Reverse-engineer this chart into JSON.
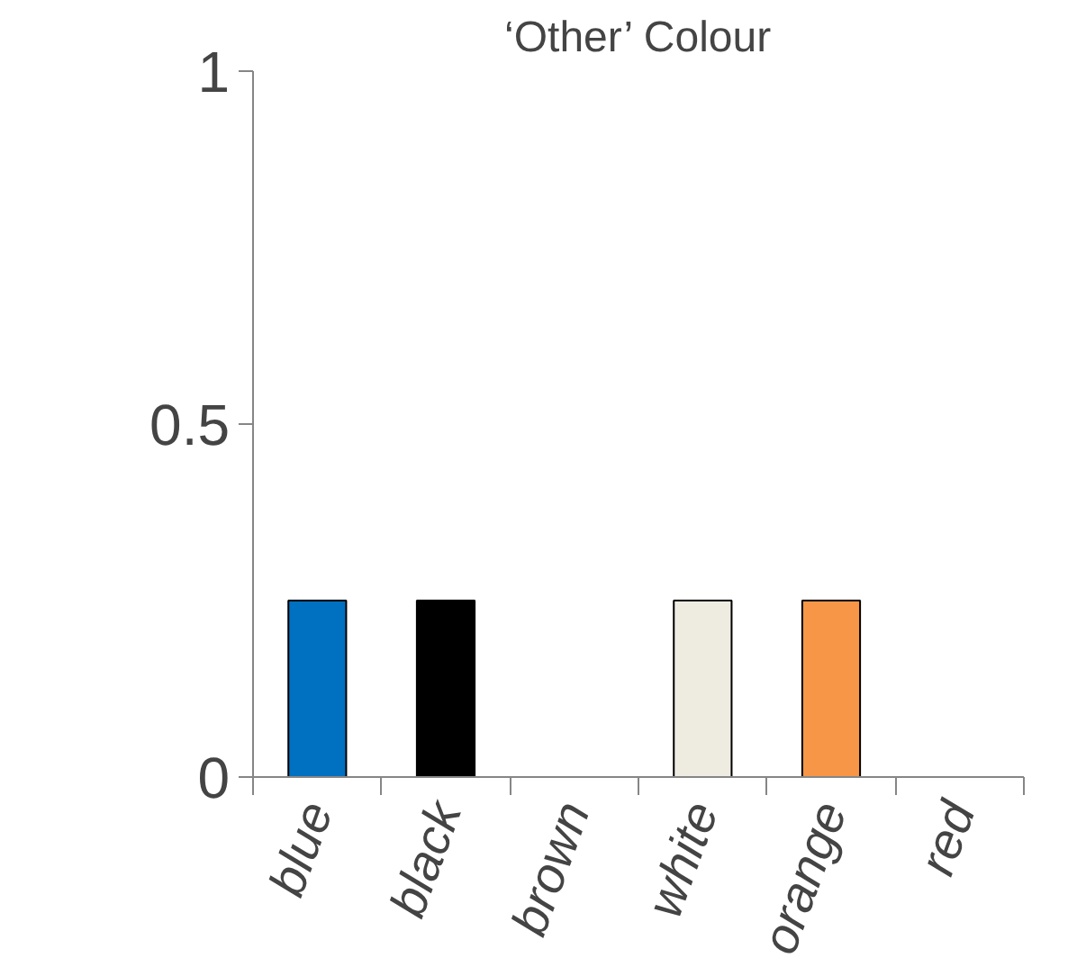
{
  "chart_data": {
    "type": "bar",
    "title": "‘Other’ Colour",
    "categories": [
      "blue",
      "black",
      "brown",
      "white",
      "orange",
      "red"
    ],
    "values": [
      0.25,
      0.25,
      0,
      0.25,
      0.25,
      0
    ],
    "colors": [
      "#0070c0",
      "#000000",
      "#000000",
      "#eeece1",
      "#f79646",
      "#000000"
    ],
    "ylim": [
      0,
      1
    ],
    "yticks": [
      0,
      0.5,
      1
    ],
    "grid": false
  }
}
